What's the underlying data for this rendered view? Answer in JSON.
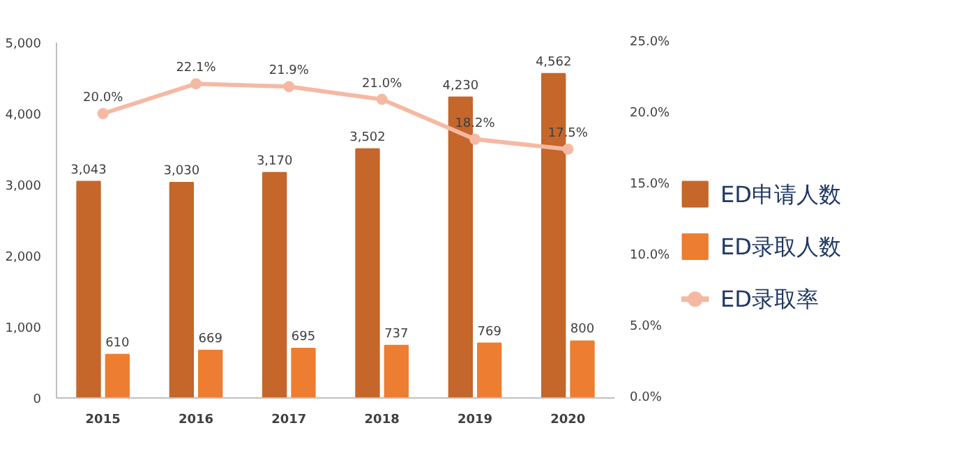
{
  "chart_data": {
    "type": "bar",
    "categories": [
      "2015",
      "2016",
      "2017",
      "2018",
      "2019",
      "2020"
    ],
    "series": [
      {
        "name": "ED申请人数",
        "color": "#c5662a",
        "values": [
          3043,
          3030,
          3170,
          3502,
          4230,
          4562
        ],
        "value_labels": [
          "3,043",
          "3,030",
          "3,170",
          "3,502",
          "4,230",
          "4,562"
        ]
      },
      {
        "name": "ED录取人数",
        "color": "#ed7d31",
        "values": [
          610,
          669,
          695,
          737,
          769,
          800
        ],
        "value_labels": [
          "610",
          "669",
          "695",
          "737",
          "769",
          "800"
        ]
      },
      {
        "name": "ED录取率",
        "type": "line",
        "axis": "y2",
        "color": "#f5b9a3",
        "marker": "circle",
        "values": [
          20.0,
          22.1,
          21.9,
          21.0,
          18.2,
          17.5
        ],
        "value_labels": [
          "20.0%",
          "22.1%",
          "21.9%",
          "21.0%",
          "18.2%",
          "17.5%"
        ]
      }
    ],
    "ylim": [
      0,
      5000
    ],
    "yticks": [
      0,
      {
        "value": 1000,
        "label": "1,000"
      },
      {
        "value": 2000,
        "label": "2,000"
      },
      {
        "value": 3000,
        "label": "3,000"
      },
      {
        "value": 4000,
        "label": "4,000"
      },
      {
        "value": 5000,
        "label": "5,000"
      }
    ],
    "y2lim": [
      0,
      25
    ],
    "y2ticks": [
      {
        "value": 0,
        "label": "0.0%"
      },
      {
        "value": 5,
        "label": "5.0%"
      },
      {
        "value": 10,
        "label": "10.0%"
      },
      {
        "value": 15,
        "label": "15.0%"
      },
      {
        "value": 20,
        "label": "20.0%"
      },
      {
        "value": 25,
        "label": "25.0%"
      }
    ],
    "grid": false,
    "legend": "right"
  }
}
